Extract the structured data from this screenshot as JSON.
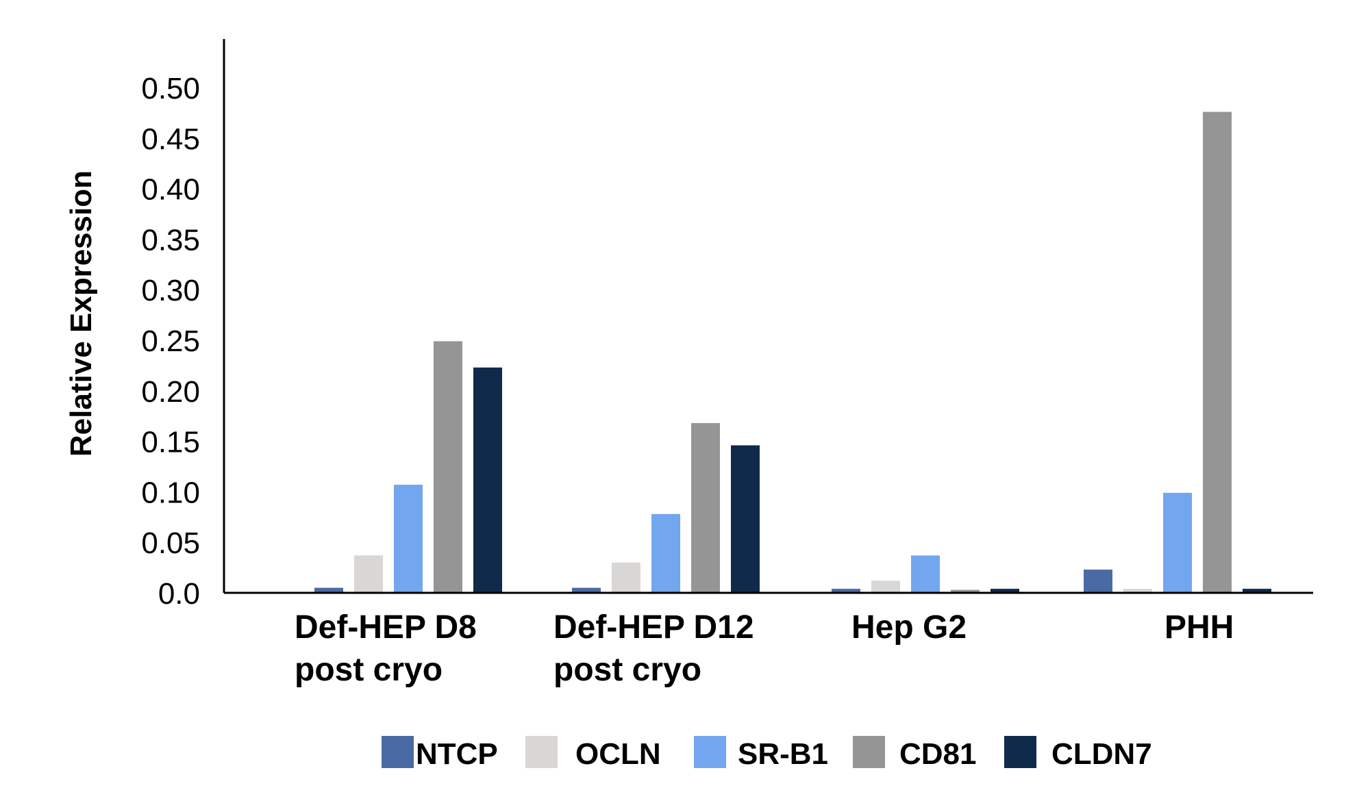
{
  "chart_data": {
    "type": "bar",
    "title": "",
    "xlabel": "",
    "ylabel": "Relative Expression",
    "ylim": [
      0,
      0.5
    ],
    "yticks": [
      "0.0",
      "0.05",
      "0.10",
      "0.15",
      "0.20",
      "0.25",
      "0.30",
      "0.35",
      "0.40",
      "0.45",
      "0.50"
    ],
    "categories": [
      [
        "Def-HEP D8",
        "post cryo"
      ],
      [
        "Def-HEP D12",
        "post cryo"
      ],
      [
        "Hep G2"
      ],
      [
        "PHH"
      ]
    ],
    "series": [
      {
        "name": "NTCP",
        "color": "#4a6aa3",
        "values": [
          0.005,
          0.005,
          0.004,
          0.023
        ]
      },
      {
        "name": "OCLN",
        "color": "#d9d7d5",
        "values": [
          0.037,
          0.03,
          0.012,
          0.004
        ]
      },
      {
        "name": "SR-B1",
        "color": "#72a6ee",
        "values": [
          0.107,
          0.078,
          0.037,
          0.099
        ]
      },
      {
        "name": "CD81",
        "color": "#959595",
        "values": [
          0.249,
          0.168,
          0.003,
          0.476
        ]
      },
      {
        "name": "CLDN7",
        "color": "#102a4c",
        "values": [
          0.223,
          0.146,
          0.004,
          0.004
        ]
      }
    ],
    "grid": false,
    "legend_position": "bottom"
  }
}
